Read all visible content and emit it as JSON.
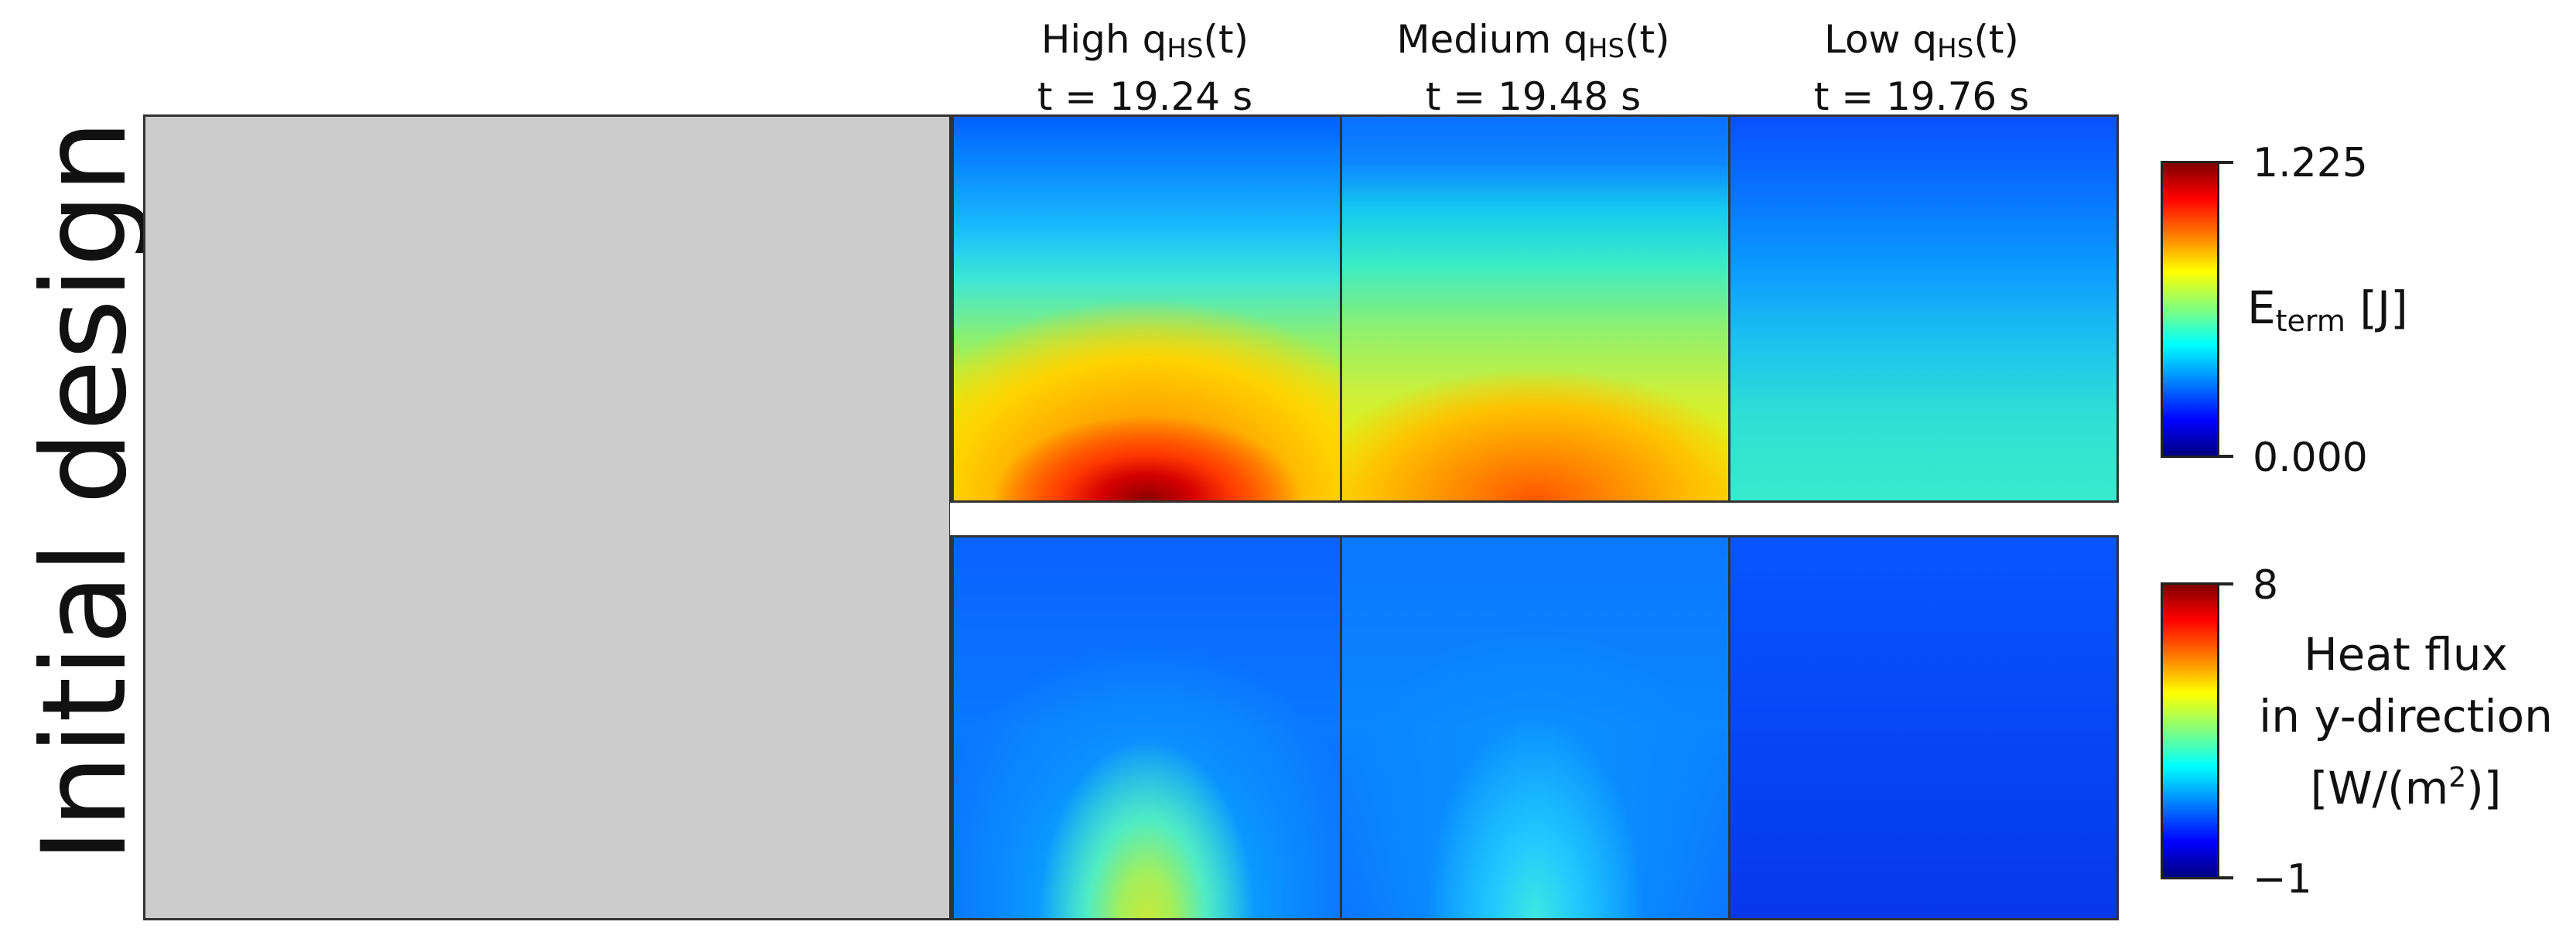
{
  "row_label": "Initial design",
  "columns": [
    {
      "q_prefix": "High q",
      "q_sub": "HS",
      "q_suffix": "(t)",
      "time": "t = 19.24 s"
    },
    {
      "q_prefix": "Medium q",
      "q_sub": "HS",
      "q_suffix": "(t)",
      "time": "t = 19.48 s"
    },
    {
      "q_prefix": "Low q",
      "q_sub": "HS",
      "q_suffix": "(t)",
      "time": "t = 19.76 s"
    }
  ],
  "colorbars": {
    "energy": {
      "max": "1.225",
      "min": "0.000",
      "title_main": "E",
      "title_sub": "term",
      "title_unit": "[J]"
    },
    "heat_flux": {
      "max": "8",
      "min": "−1",
      "line1": "Heat flux",
      "line2": "in y-direction",
      "unit_prefix": "[W/(m",
      "unit_sup": "2",
      "unit_suffix": ")]"
    }
  },
  "colormap": "jet",
  "colors": {
    "design_fill": "#cccccc",
    "border": "#333333"
  }
}
